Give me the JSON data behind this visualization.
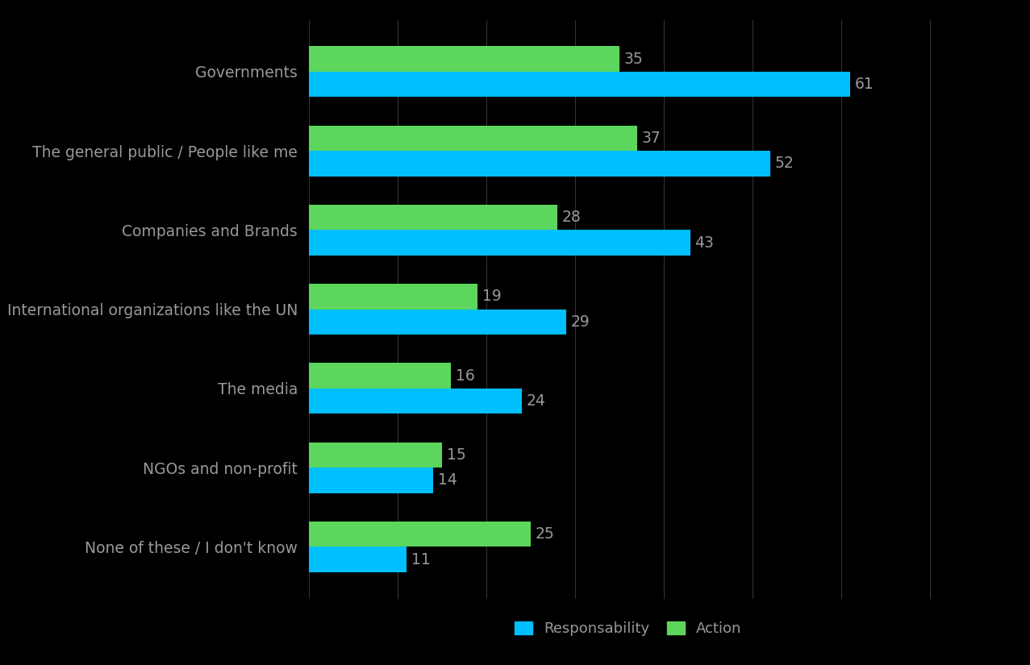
{
  "categories": [
    "Governments",
    "The general public / People like me",
    "Companies and Brands",
    "International organizations like the UN",
    "The media",
    "NGOs and non-profit",
    "None of these / I don't know"
  ],
  "responsibility": [
    61,
    52,
    43,
    29,
    24,
    14,
    11
  ],
  "action": [
    35,
    37,
    28,
    19,
    16,
    15,
    25
  ],
  "responsibility_color": "#00BFFF",
  "action_color": "#5CD65C",
  "background_color": "#000000",
  "text_color": "#999999",
  "bar_height": 0.32,
  "xlim": [
    0,
    72
  ],
  "legend_labels": [
    "Responsability",
    "Action"
  ],
  "grid_color": "#333333",
  "label_fontsize": 13.5,
  "value_fontsize": 13.5,
  "grid_ticks": [
    0,
    10,
    20,
    30,
    40,
    50,
    60,
    70
  ]
}
